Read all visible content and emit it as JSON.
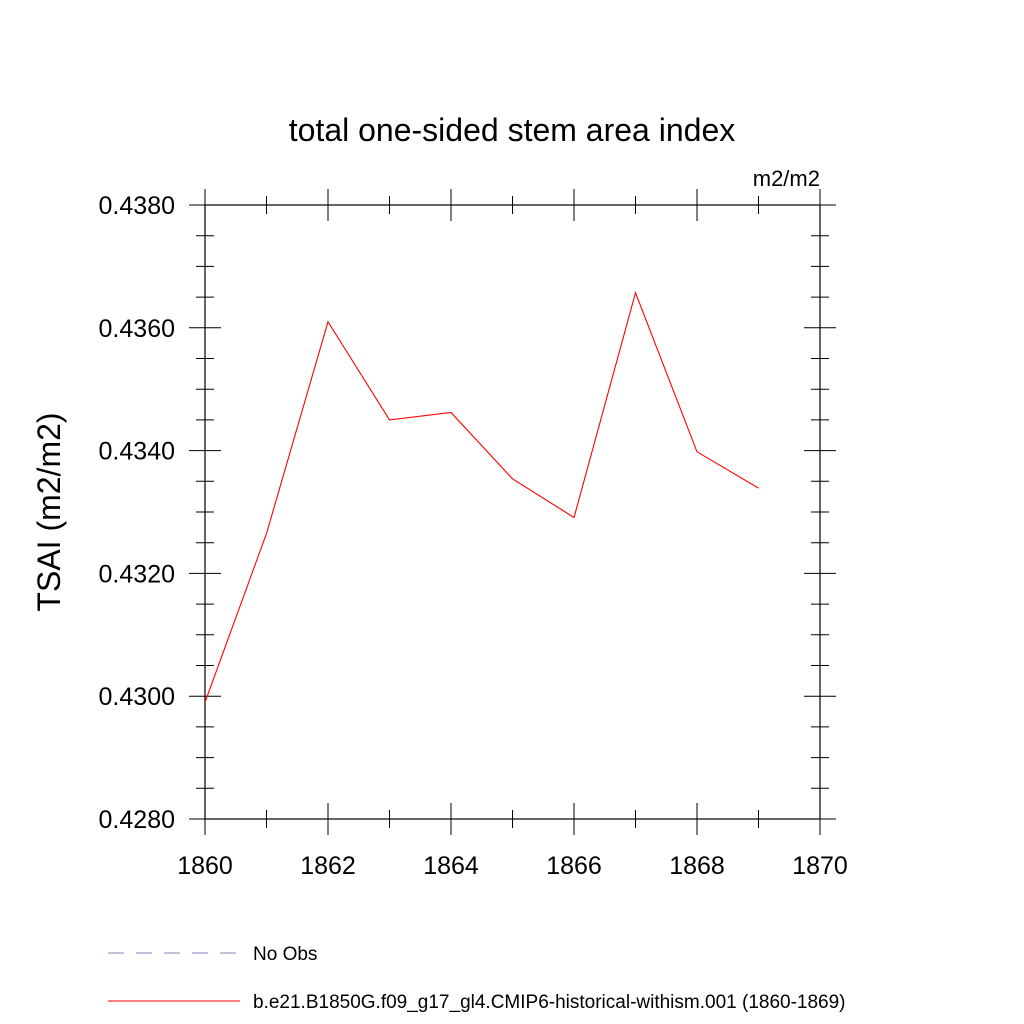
{
  "chart_data": {
    "type": "line",
    "title": "total one-sided stem area index",
    "units": "m2/m2",
    "ylabel": "TSAI  (m2/m2)",
    "xlabel": "",
    "xlim": [
      1860,
      1870
    ],
    "ylim": [
      0.428,
      0.438
    ],
    "x_ticks": [
      1860,
      1862,
      1864,
      1866,
      1868,
      1870
    ],
    "y_ticks": [
      0.428,
      0.43,
      0.432,
      0.434,
      0.436,
      0.438
    ],
    "x_tick_labels": [
      "1860",
      "1862",
      "1864",
      "1866",
      "1868",
      "1870"
    ],
    "y_tick_labels": [
      "0.4280",
      "0.4300",
      "0.4320",
      "0.4340",
      "0.4360",
      "0.4380"
    ],
    "x_minor_step": 1,
    "y_minor_step": 0.0005,
    "grid": false,
    "legend_position": "bottom",
    "series": [
      {
        "name": "b.e21.B1850G.f09_g17_gl4.CMIP6-historical-withism.001 (1860-1869)",
        "color": "#ff0000",
        "style": "solid",
        "x": [
          1860,
          1861,
          1862,
          1863,
          1864,
          1865,
          1866,
          1867,
          1868,
          1869
        ],
        "values": [
          0.4299,
          0.43265,
          0.4361,
          0.4345,
          0.43462,
          0.43354,
          0.43291,
          0.43657,
          0.43398,
          0.43339
        ]
      }
    ],
    "legend": [
      {
        "label": "No Obs",
        "color": "#8080c0",
        "style": "dashed"
      },
      {
        "label": "b.e21.B1850G.f09_g17_gl4.CMIP6-historical-withism.001 (1860-1869)",
        "color": "#ff0000",
        "style": "solid"
      }
    ]
  }
}
